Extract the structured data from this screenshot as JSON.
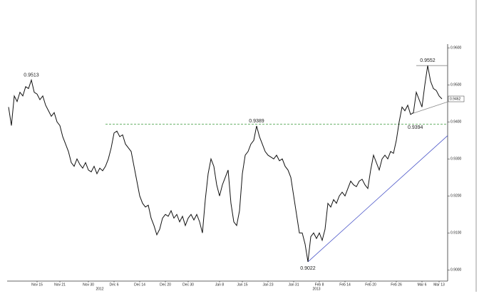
{
  "chart_data": {
    "type": "line",
    "categories": [
      null,
      null,
      null,
      null,
      null,
      null,
      null,
      null,
      null,
      null,
      "Nov 15",
      null,
      null,
      null,
      null,
      null,
      null,
      null,
      "Nov 21",
      null,
      null,
      null,
      null,
      null,
      null,
      null,
      null,
      null,
      "Nov 30",
      null,
      null,
      null,
      null,
      null,
      null,
      null,
      null,
      "Dec 6",
      null,
      null,
      null,
      null,
      null,
      null,
      null,
      null,
      "Dec 14",
      null,
      null,
      null,
      null,
      null,
      null,
      null,
      null,
      "Dec 20",
      null,
      null,
      null,
      null,
      null,
      null,
      null,
      "Dec 30",
      null,
      null,
      null,
      null,
      null,
      null,
      null,
      null,
      null,
      null,
      "Jan 8",
      null,
      null,
      null,
      null,
      null,
      null,
      null,
      "Jan 15",
      null,
      null,
      null,
      null,
      null,
      null,
      null,
      null,
      "Jan 23",
      null,
      null,
      null,
      null,
      null,
      null,
      null,
      null,
      "Jan 31",
      null,
      null,
      null,
      null,
      null,
      null,
      null,
      null,
      "Feb 8",
      null,
      null,
      null,
      null,
      null,
      null,
      null,
      null,
      "Feb 14",
      null,
      null,
      null,
      null,
      null,
      null,
      null,
      null,
      "Feb 20",
      null,
      null,
      null,
      null,
      null,
      null,
      null,
      null,
      "Feb 26",
      null,
      null,
      null,
      null,
      null,
      null,
      null,
      null,
      "Mar 6",
      null,
      null,
      null,
      null,
      null,
      "Mar 13",
      null
    ],
    "category_years": [
      null,
      null,
      null,
      null,
      null,
      null,
      null,
      null,
      null,
      null,
      null,
      null,
      null,
      null,
      null,
      null,
      null,
      null,
      null,
      null,
      null,
      null,
      null,
      null,
      null,
      null,
      null,
      null,
      null,
      null,
      null,
      null,
      "2012",
      null,
      null,
      null,
      null,
      null,
      null,
      null,
      null,
      null,
      null,
      null,
      null,
      null,
      null,
      null,
      null,
      null,
      null,
      null,
      null,
      null,
      null,
      null,
      null,
      null,
      null,
      null,
      null,
      null,
      null,
      null,
      null,
      null,
      null,
      null,
      null,
      null,
      null,
      null,
      null,
      null,
      null,
      null,
      null,
      null,
      null,
      null,
      null,
      null,
      null,
      null,
      null,
      null,
      null,
      null,
      null,
      null,
      null,
      null,
      null,
      null,
      null,
      null,
      null,
      null,
      null,
      null,
      null,
      null,
      null,
      null,
      null,
      null,
      null,
      null,
      "2013",
      null,
      null,
      null,
      null,
      null,
      null,
      null,
      null,
      null,
      null,
      null,
      null,
      null,
      null,
      null,
      null,
      null,
      null,
      null,
      null,
      null,
      null,
      null,
      null,
      null,
      null,
      null,
      null,
      null,
      null,
      null,
      null,
      null,
      null,
      null,
      null,
      null,
      null,
      null,
      null,
      null,
      null,
      null
    ],
    "series": [
      {
        "color": "#111111",
        "values": [
          0.944,
          0.939,
          0.947,
          0.9455,
          0.948,
          0.947,
          0.9495,
          0.949,
          0.9513,
          0.948,
          0.9475,
          0.946,
          0.947,
          0.9445,
          0.943,
          0.9415,
          0.9425,
          0.94,
          0.939,
          0.936,
          0.934,
          0.932,
          0.929,
          0.928,
          0.93,
          0.9285,
          0.9275,
          0.929,
          0.927,
          0.9265,
          0.928,
          0.926,
          0.9275,
          0.9268,
          0.928,
          0.93,
          0.933,
          0.937,
          0.9375,
          0.936,
          0.9365,
          0.934,
          0.933,
          0.932,
          0.928,
          0.924,
          0.92,
          0.918,
          0.917,
          0.9175,
          0.914,
          0.912,
          0.9095,
          0.911,
          0.914,
          0.915,
          0.9145,
          0.916,
          0.914,
          0.915,
          0.913,
          0.9145,
          0.912,
          0.914,
          0.915,
          0.9135,
          0.915,
          0.913,
          0.91,
          0.919,
          0.926,
          0.93,
          0.928,
          0.923,
          0.92,
          0.923,
          0.925,
          0.927,
          0.918,
          0.913,
          0.912,
          0.916,
          0.926,
          0.931,
          0.932,
          0.934,
          0.935,
          0.9389,
          0.936,
          0.934,
          0.932,
          0.931,
          0.9305,
          0.93,
          0.931,
          0.9295,
          0.93,
          0.928,
          0.927,
          0.925,
          0.92,
          0.915,
          0.91,
          0.91,
          0.907,
          0.9022,
          0.909,
          0.91,
          0.9085,
          0.91,
          0.908,
          0.911,
          0.918,
          0.917,
          0.919,
          0.918,
          0.92,
          0.921,
          0.92,
          0.922,
          0.924,
          0.923,
          0.9225,
          0.924,
          0.9245,
          0.923,
          0.922,
          0.927,
          0.931,
          0.929,
          0.927,
          0.93,
          0.931,
          0.93,
          0.932,
          0.9315,
          0.935,
          0.94,
          0.944,
          0.943,
          0.9445,
          0.942,
          0.9425,
          0.948,
          0.946,
          0.944,
          0.95,
          0.9552,
          0.951,
          0.949,
          0.9485,
          0.947,
          0.9462
        ],
        "value_labels": [
          null,
          null,
          null,
          null,
          null,
          null,
          null,
          null,
          "0.9513",
          null,
          null,
          null,
          null,
          null,
          null,
          null,
          null,
          null,
          null,
          null,
          null,
          null,
          null,
          null,
          null,
          null,
          null,
          null,
          null,
          null,
          null,
          null,
          null,
          null,
          null,
          null,
          null,
          null,
          null,
          null,
          null,
          null,
          null,
          null,
          null,
          null,
          null,
          null,
          null,
          null,
          null,
          null,
          null,
          null,
          null,
          null,
          null,
          null,
          null,
          null,
          null,
          null,
          null,
          null,
          null,
          null,
          null,
          null,
          null,
          null,
          null,
          null,
          null,
          null,
          null,
          null,
          null,
          null,
          null,
          null,
          null,
          null,
          null,
          null,
          null,
          null,
          null,
          "0.9389",
          null,
          null,
          null,
          null,
          null,
          null,
          null,
          null,
          null,
          null,
          null,
          null,
          null,
          null,
          null,
          null,
          null,
          "0.9022",
          null,
          null,
          null,
          null,
          null,
          null,
          null,
          null,
          null,
          null,
          null,
          null,
          null,
          null,
          null,
          null,
          null,
          null,
          null,
          null,
          null,
          null,
          null,
          null,
          null,
          null,
          null,
          null,
          null,
          null,
          null,
          null,
          null,
          null,
          null,
          null,
          null,
          null,
          null,
          null,
          null,
          "0.9552",
          null,
          null,
          null,
          null,
          "0.9462"
        ]
      }
    ],
    "horizontal_line": {
      "value": 0.9394,
      "label": "0.9394",
      "color": "#3a9a3a"
    },
    "trendlines": [
      {
        "color": "#4a55c8",
        "points": [
          [
            105,
            0.9022
          ],
          [
            154,
            0.9363
          ]
        ]
      },
      {
        "color": "#888888",
        "points": [
          [
            141,
            0.9421
          ],
          [
            154,
            0.9454
          ]
        ]
      },
      {
        "color": "#888888",
        "points": [
          [
            143,
            0.9552
          ],
          [
            154,
            0.9552
          ]
        ]
      }
    ],
    "ylim": [
      0.897,
      0.961
    ],
    "yticks": [
      {
        "value": 0.9,
        "label": "0.9000"
      },
      {
        "value": 0.91,
        "label": "0.9100"
      },
      {
        "value": 0.92,
        "label": "0.9200"
      },
      {
        "value": 0.93,
        "label": "0.9300"
      },
      {
        "value": 0.94,
        "label": "0.9400"
      },
      {
        "value": 0.95,
        "label": "0.9500"
      },
      {
        "value": 0.96,
        "label": "0.9600"
      }
    ]
  }
}
